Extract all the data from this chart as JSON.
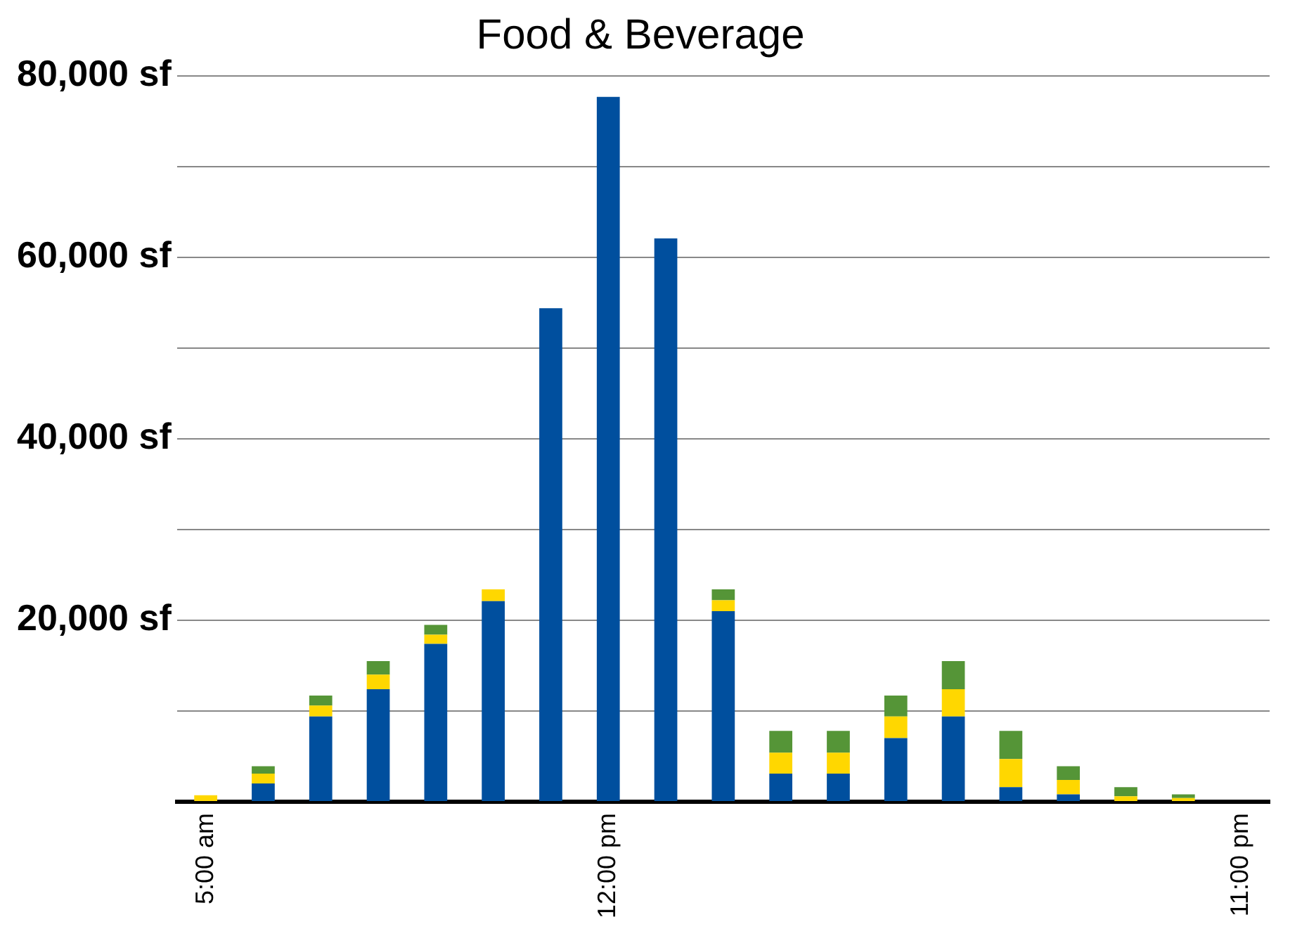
{
  "chart_data": {
    "type": "bar",
    "title": "Food & Beverage",
    "stacked": true,
    "grid": "y",
    "categories": [
      "5:00 am",
      null,
      null,
      null,
      null,
      null,
      null,
      "12:00 pm",
      null,
      null,
      null,
      null,
      null,
      null,
      null,
      null,
      null,
      null,
      "11:00 pm"
    ],
    "series": [
      {
        "color": "#004f9e",
        "values": [
          0,
          2000,
          9400,
          12400,
          17400,
          22100,
          54400,
          77700,
          62100,
          21000,
          3100,
          3100,
          7000,
          9400,
          1600,
          800,
          0,
          0,
          0
        ]
      },
      {
        "color": "#ffd700",
        "values": [
          700,
          1100,
          1200,
          1600,
          1000,
          1300,
          0,
          0,
          0,
          1200,
          2300,
          2300,
          2400,
          3000,
          3100,
          1600,
          600,
          400,
          0
        ]
      },
      {
        "color": "#559537",
        "values": [
          0,
          800,
          1100,
          1500,
          1100,
          0,
          0,
          0,
          0,
          1200,
          2400,
          2400,
          2300,
          3100,
          3100,
          1500,
          1000,
          400,
          null
        ]
      }
    ],
    "ylim": [
      0,
      80000
    ],
    "yticks": [
      {
        "value": 0,
        "label": null
      },
      {
        "value": 10000,
        "label": null
      },
      {
        "value": 20000,
        "label": "20,000 sf"
      },
      {
        "value": 30000,
        "label": null
      },
      {
        "value": 40000,
        "label": "40,000 sf"
      },
      {
        "value": 50000,
        "label": null
      },
      {
        "value": 60000,
        "label": "60,000 sf"
      },
      {
        "value": 70000,
        "label": null
      },
      {
        "value": 80000,
        "label": "80,000 sf"
      }
    ]
  }
}
